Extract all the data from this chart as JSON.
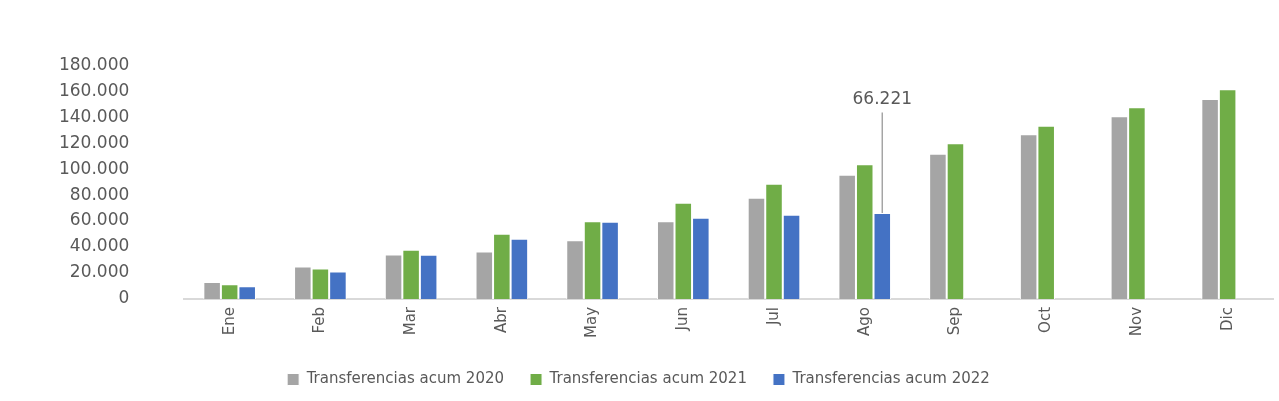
{
  "chart_data": {
    "type": "bar",
    "categories": [
      "Ene",
      "Feb",
      "Mar",
      "Abr",
      "May",
      "Jun",
      "Jul",
      "Ago",
      "Sep",
      "Oct",
      "Nov",
      "Dic"
    ],
    "series": [
      {
        "name": "Transferencias acum 2020",
        "color": "#a5a5a5",
        "values": [
          13100,
          25100,
          34300,
          36500,
          45200,
          59900,
          78000,
          95700,
          111900,
          126800,
          140600,
          153900
        ]
      },
      {
        "name": "Transferencias acum 2021",
        "color": "#70ad47",
        "values": [
          11400,
          23400,
          38000,
          50300,
          59900,
          74100,
          88800,
          103800,
          120000,
          133300,
          147600,
          161500
        ]
      },
      {
        "name": "Transferencias acum 2022",
        "color": "#4472c4",
        "values": [
          9800,
          21200,
          34100,
          46300,
          59500,
          62500,
          64900,
          66221,
          null,
          null,
          null,
          null
        ],
        "value_labels": [
          null,
          null,
          null,
          null,
          null,
          null,
          null,
          "66.221",
          null,
          null,
          null,
          null
        ]
      }
    ],
    "ylim": [
      0,
      180000
    ],
    "yticks": [
      {
        "value": 0,
        "label": "0"
      },
      {
        "value": 20000,
        "label": "20.000"
      },
      {
        "value": 40000,
        "label": "40.000"
      },
      {
        "value": 60000,
        "label": "60.000"
      },
      {
        "value": 80000,
        "label": "80.000"
      },
      {
        "value": 100000,
        "label": "100.000"
      },
      {
        "value": 120000,
        "label": "120.000"
      },
      {
        "value": 140000,
        "label": "140.000"
      },
      {
        "value": 160000,
        "label": "160.000"
      },
      {
        "value": 180000,
        "label": "180.000"
      }
    ],
    "grid": false,
    "legend": "bottom"
  }
}
